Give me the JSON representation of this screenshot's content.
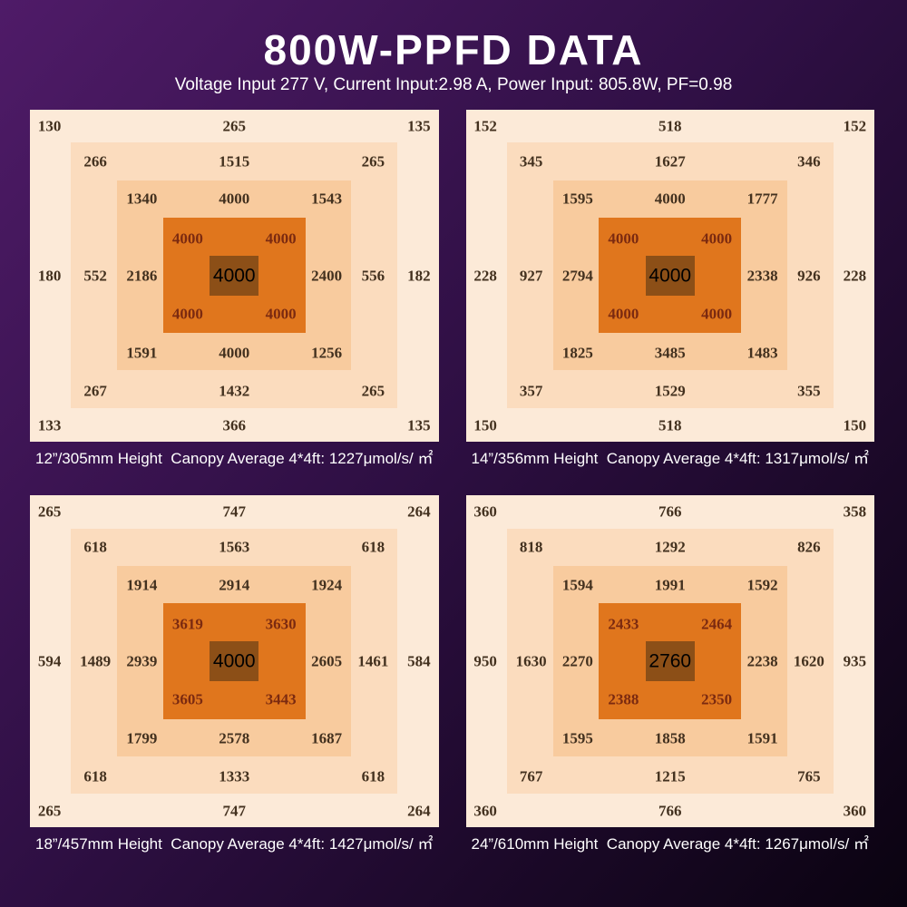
{
  "header": {
    "title": "800W-PPFD DATA",
    "subtitle": "Voltage Input 277 V, Current Input:2.98 A, Power Input: 805.8W, PF=0.98"
  },
  "colors": {
    "bg1": "#4f1b68",
    "bg2": "#2e0f43",
    "bg3": "#0a0310",
    "zone-outer": "#fcead8",
    "zone-2": "#fbdcbe",
    "zone-3": "#f8cb9e",
    "zone-core": "#e0761d",
    "zone-center": "#8c4f17",
    "num": "#43311f",
    "num-core": "#7b2a10",
    "num-center": "#000000",
    "text": "#ffffff"
  },
  "chart_data": [
    {
      "type": "heatmap",
      "height": "12”/305mm",
      "average": 1227,
      "unit": "μmol/s/㎡",
      "caption": "12”/305mm Height  Canopy Average 4*4ft: 1227μmol/s/ ㎡",
      "rings": {
        "outer": {
          "tl": 130,
          "tc": 265,
          "tr": 135,
          "ml": 180,
          "mr": 182,
          "bl": 133,
          "bc": 366,
          "br": 135
        },
        "ring2": {
          "tl": 266,
          "tc": 1515,
          "tr": 265,
          "ml": 552,
          "mr": 556,
          "bl": 267,
          "bc": 1432,
          "br": 265
        },
        "ring3": {
          "tl": 1340,
          "tc": 4000,
          "tr": 1543,
          "ml": 2186,
          "mr": 2400,
          "bl": 1591,
          "bc": 4000,
          "br": 1256
        },
        "inner": {
          "tl": 4000,
          "tr": 4000,
          "bl": 4000,
          "br": 4000
        },
        "center": 4000
      }
    },
    {
      "type": "heatmap",
      "height": "14”/356mm",
      "average": 1317,
      "unit": "μmol/s/㎡",
      "caption": "14”/356mm Height  Canopy Average 4*4ft: 1317μmol/s/ ㎡",
      "rings": {
        "outer": {
          "tl": 152,
          "tc": 518,
          "tr": 152,
          "ml": 228,
          "mr": 228,
          "bl": 150,
          "bc": 518,
          "br": 150
        },
        "ring2": {
          "tl": 345,
          "tc": 1627,
          "tr": 346,
          "ml": 927,
          "mr": 926,
          "bl": 357,
          "bc": 1529,
          "br": 355
        },
        "ring3": {
          "tl": 1595,
          "tc": 4000,
          "tr": 1777,
          "ml": 2794,
          "mr": 2338,
          "bl": 1825,
          "bc": 3485,
          "br": 1483
        },
        "inner": {
          "tl": 4000,
          "tr": 4000,
          "bl": 4000,
          "br": 4000
        },
        "center": 4000
      }
    },
    {
      "type": "heatmap",
      "height": "18”/457mm",
      "average": 1427,
      "unit": "μmol/s/㎡",
      "caption": "18”/457mm Height  Canopy Average 4*4ft: 1427μmol/s/ ㎡",
      "rings": {
        "outer": {
          "tl": 265,
          "tc": 747,
          "tr": 264,
          "ml": 594,
          "mr": 584,
          "bl": 265,
          "bc": 747,
          "br": 264
        },
        "ring2": {
          "tl": 618,
          "tc": 1563,
          "tr": 618,
          "ml": 1489,
          "mr": 1461,
          "bl": 618,
          "bc": 1333,
          "br": 618
        },
        "ring3": {
          "tl": 1914,
          "tc": 2914,
          "tr": 1924,
          "ml": 2939,
          "mr": 2605,
          "bl": 1799,
          "bc": 2578,
          "br": 1687
        },
        "inner": {
          "tl": 3619,
          "tr": 3630,
          "bl": 3605,
          "br": 3443
        },
        "center": 4000
      }
    },
    {
      "type": "heatmap",
      "height": "24”/610mm",
      "average": 1267,
      "unit": "μmol/s/㎡",
      "caption": "24”/610mm Height  Canopy Average 4*4ft: 1267μmol/s/ ㎡",
      "rings": {
        "outer": {
          "tl": 360,
          "tc": 766,
          "tr": 358,
          "ml": 950,
          "mr": 935,
          "bl": 360,
          "bc": 766,
          "br": 360
        },
        "ring2": {
          "tl": 818,
          "tc": 1292,
          "tr": 826,
          "ml": 1630,
          "mr": 1620,
          "bl": 767,
          "bc": 1215,
          "br": 765
        },
        "ring3": {
          "tl": 1594,
          "tc": 1991,
          "tr": 1592,
          "ml": 2270,
          "mr": 2238,
          "bl": 1595,
          "bc": 1858,
          "br": 1591
        },
        "inner": {
          "tl": 2433,
          "tr": 2464,
          "bl": 2388,
          "br": 2350
        },
        "center": 2760
      }
    }
  ]
}
